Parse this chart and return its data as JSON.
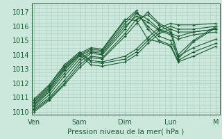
{
  "bg_color": "#cce8dc",
  "grid_color": "#aad0c0",
  "line_color": "#1a5c32",
  "xlabel": "Pression niveau de la mer( hPa )",
  "ylim": [
    1009.8,
    1017.6
  ],
  "yticks": [
    1010,
    1011,
    1012,
    1013,
    1014,
    1015,
    1016,
    1017
  ],
  "xtick_labels": [
    "Ven",
    "Sam",
    "Dim",
    "Lun",
    "M"
  ],
  "xtick_positions": [
    0,
    24,
    48,
    72,
    96
  ],
  "series": [
    [
      1010.2,
      1011.0,
      1012.2,
      1013.5,
      1014.1,
      1014.0,
      1015.8,
      1016.9,
      1016.5,
      1015.8,
      1015.5,
      1015.3,
      1015.6,
      1015.8
    ],
    [
      1010.3,
      1011.2,
      1012.5,
      1013.7,
      1014.2,
      1014.1,
      1016.0,
      1016.7,
      1016.3,
      1015.7,
      1015.4,
      1015.1,
      1015.4,
      1015.6
    ],
    [
      1010.1,
      1010.9,
      1012.0,
      1013.3,
      1013.9,
      1013.8,
      1015.5,
      1016.5,
      1016.8,
      1016.1,
      1015.6,
      1013.7,
      1014.9,
      1015.9
    ],
    [
      1010.4,
      1011.4,
      1012.7,
      1013.9,
      1014.3,
      1014.2,
      1016.2,
      1017.0,
      1016.0,
      1015.3,
      1015.0,
      1013.9,
      1014.5,
      1015.1
    ],
    [
      1010.5,
      1011.5,
      1012.9,
      1014.0,
      1014.4,
      1014.3,
      1016.4,
      1017.1,
      1015.8,
      1015.0,
      1014.7,
      1013.6,
      1014.2,
      1014.8
    ],
    [
      1010.6,
      1011.6,
      1013.1,
      1014.1,
      1014.5,
      1014.4,
      1016.5,
      1016.4,
      1015.1,
      1014.9,
      1014.6,
      1013.5,
      1013.9,
      1014.6
    ],
    [
      1010.0,
      1010.8,
      1011.9,
      1013.1,
      1013.8,
      1013.7,
      1015.3,
      1016.2,
      1017.0,
      1016.2,
      1015.8,
      1014.0,
      1015.0,
      1016.0
    ],
    [
      1010.7,
      1011.7,
      1013.0,
      1014.0,
      1013.3,
      1013.2,
      1013.5,
      1014.0,
      1014.8,
      1015.5,
      1015.8,
      1015.6,
      1015.6,
      1015.8
    ],
    [
      1010.8,
      1011.8,
      1013.2,
      1014.1,
      1013.5,
      1013.4,
      1013.7,
      1014.2,
      1015.0,
      1015.7,
      1016.0,
      1015.8,
      1015.8,
      1016.0
    ],
    [
      1010.9,
      1011.9,
      1013.3,
      1014.2,
      1013.6,
      1013.5,
      1013.9,
      1014.4,
      1015.2,
      1015.9,
      1016.2,
      1016.1,
      1016.1,
      1016.2
    ]
  ],
  "series_x": [
    0,
    8,
    16,
    24,
    30,
    36,
    48,
    54,
    60,
    66,
    72,
    76,
    84,
    96
  ],
  "xlabel_fontsize": 7.5,
  "tick_fontsize": 7,
  "linewidth": 0.8,
  "markersize": 2.5
}
